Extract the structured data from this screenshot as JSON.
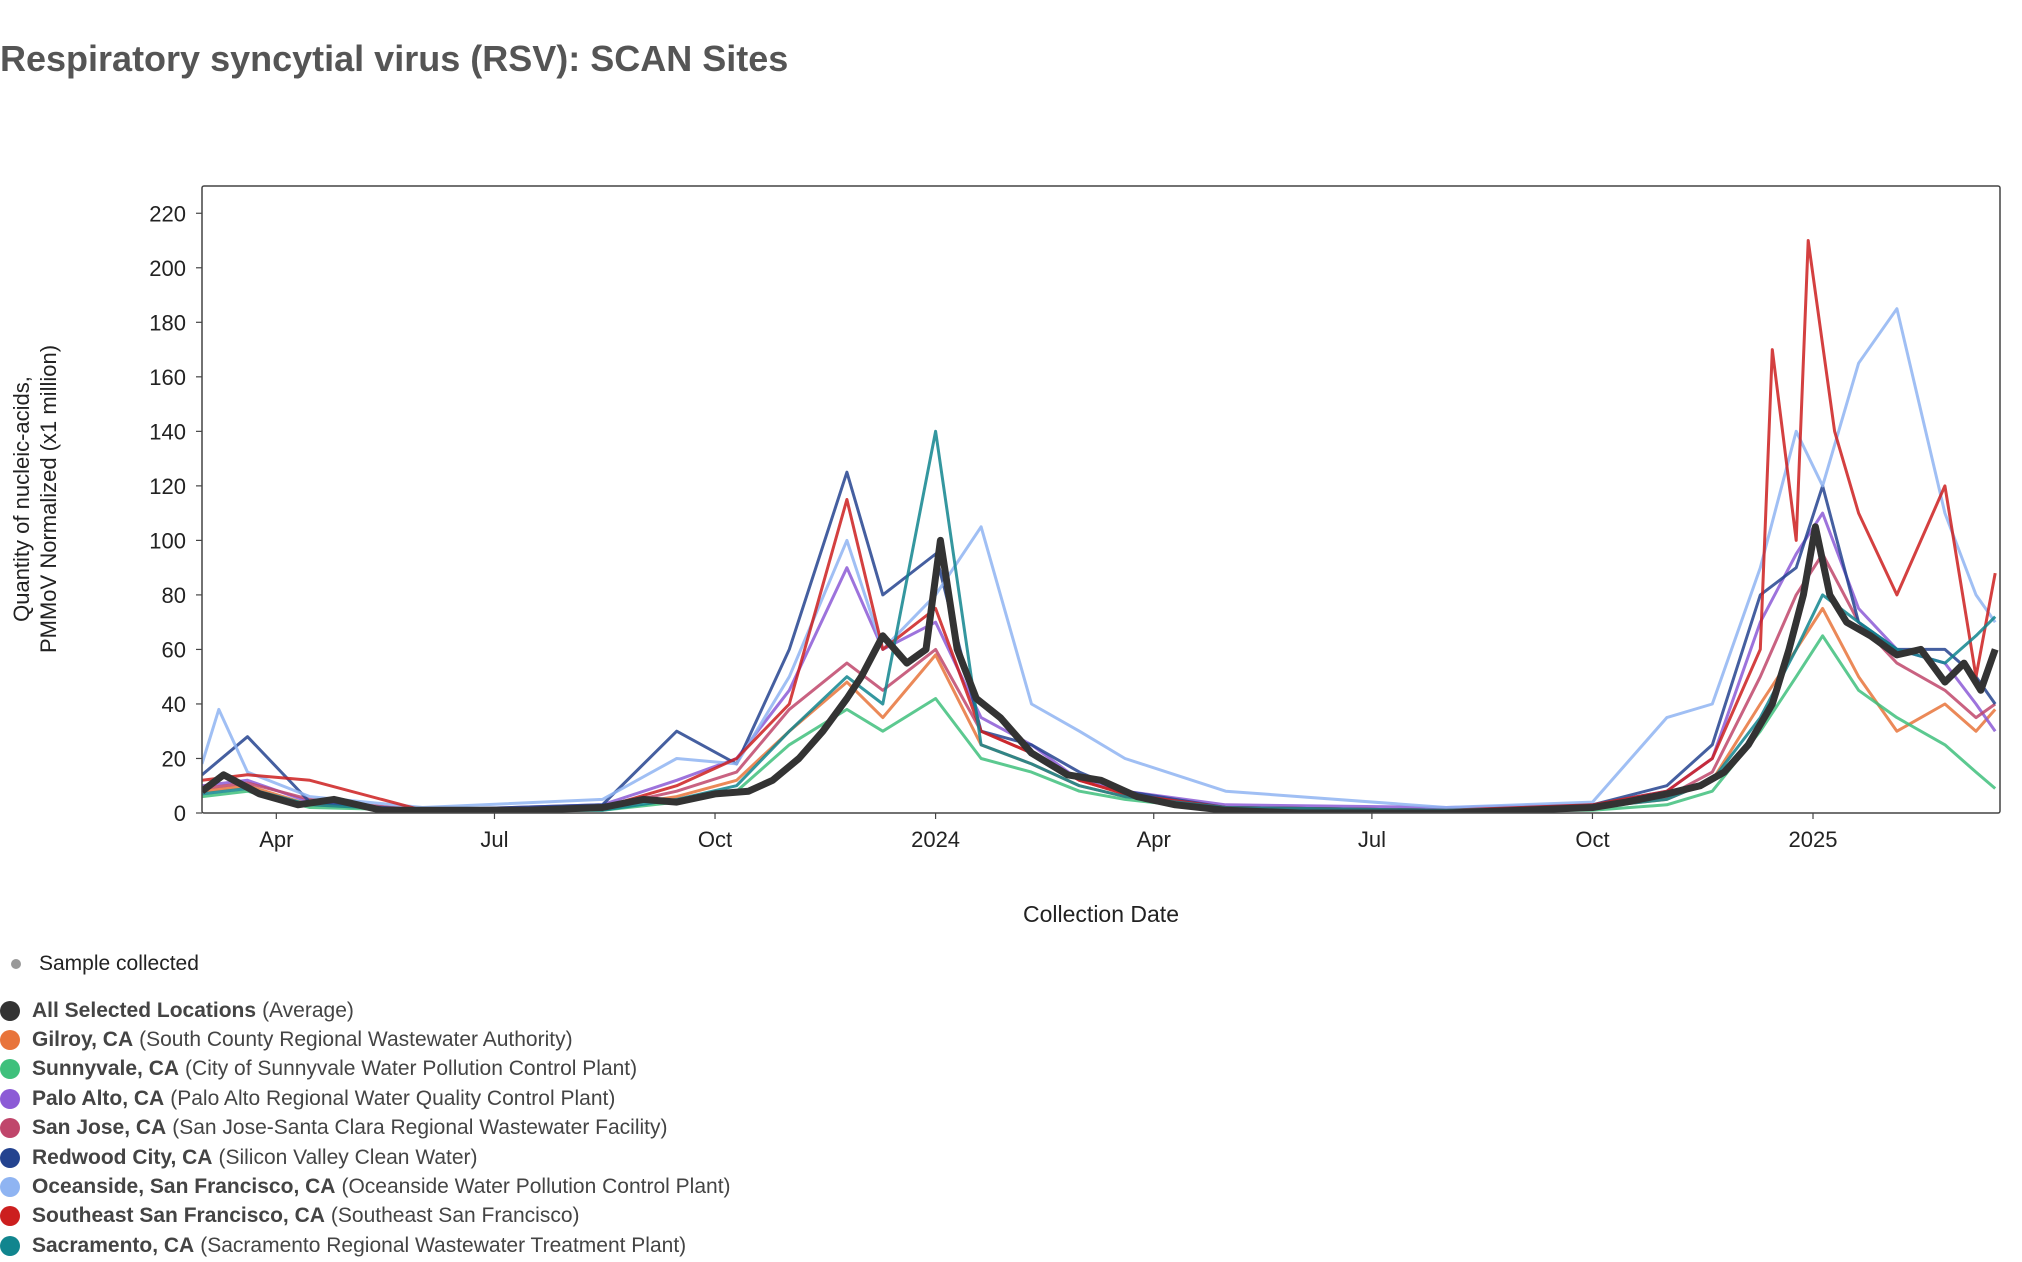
{
  "title": "Respiratory syncytial virus (RSV): SCAN Sites",
  "chart_data": {
    "type": "line",
    "title": "Respiratory syncytial virus (RSV): SCAN Sites",
    "xlabel": "Collection Date",
    "ylabel_lines": [
      "Quantity of nucleic-acids,",
      "PMMoV Normalized (x1 million)"
    ],
    "xlim": [
      "2023-03-01",
      "2025-03-20"
    ],
    "ylim": [
      0,
      230
    ],
    "y_ticks": [
      0,
      20,
      40,
      60,
      80,
      100,
      120,
      140,
      160,
      180,
      200,
      220
    ],
    "x_ticks": [
      {
        "date": "2023-04-01",
        "label": "Apr"
      },
      {
        "date": "2023-07-01",
        "label": "Jul"
      },
      {
        "date": "2023-10-01",
        "label": "Oct"
      },
      {
        "date": "2024-01-01",
        "label": "2024"
      },
      {
        "date": "2024-04-01",
        "label": "Apr"
      },
      {
        "date": "2024-07-01",
        "label": "Jul"
      },
      {
        "date": "2024-10-01",
        "label": "Oct"
      },
      {
        "date": "2025-01-01",
        "label": "2025"
      }
    ],
    "grid": false,
    "legend_position": "bottom-left",
    "sample_legend_label": "Sample collected",
    "series": [
      {
        "name": "Gilroy, CA",
        "facility": "(South County Regional Wastewater Authority)",
        "color": "#e8743b",
        "x": [
          "2023-03-01",
          "2023-03-20",
          "2023-04-15",
          "2023-06-01",
          "2023-08-15",
          "2023-09-15",
          "2023-10-10",
          "2023-11-01",
          "2023-11-25",
          "2023-12-10",
          "2024-01-01",
          "2024-01-20",
          "2024-02-10",
          "2024-03-01",
          "2024-03-20",
          "2024-05-01",
          "2024-08-01",
          "2024-10-01",
          "2024-11-01",
          "2024-11-20",
          "2024-12-10",
          "2024-12-25",
          "2025-01-05",
          "2025-01-20",
          "2025-02-05",
          "2025-02-25",
          "2025-03-10",
          "2025-03-18"
        ],
        "y": [
          8,
          10,
          3,
          1,
          2,
          6,
          12,
          30,
          48,
          35,
          58,
          25,
          18,
          10,
          6,
          2,
          1,
          2,
          5,
          12,
          40,
          60,
          75,
          50,
          30,
          40,
          30,
          38
        ]
      },
      {
        "name": "Sunnyvale, CA",
        "facility": "(City of Sunnyvale Water Pollution Control Plant)",
        "color": "#3fc07c",
        "x": [
          "2023-03-01",
          "2023-03-20",
          "2023-04-15",
          "2023-06-01",
          "2023-08-15",
          "2023-09-15",
          "2023-10-10",
          "2023-11-01",
          "2023-11-25",
          "2023-12-10",
          "2024-01-01",
          "2024-01-20",
          "2024-02-10",
          "2024-03-01",
          "2024-03-20",
          "2024-05-01",
          "2024-08-01",
          "2024-10-01",
          "2024-11-01",
          "2024-11-20",
          "2024-12-10",
          "2024-12-25",
          "2025-01-05",
          "2025-01-20",
          "2025-02-05",
          "2025-02-25",
          "2025-03-10",
          "2025-03-18"
        ],
        "y": [
          6,
          8,
          2,
          1,
          1,
          4,
          8,
          25,
          38,
          30,
          42,
          20,
          15,
          8,
          5,
          1,
          1,
          1,
          3,
          8,
          30,
          50,
          65,
          45,
          35,
          25,
          15,
          9
        ]
      },
      {
        "name": "Palo Alto, CA",
        "facility": "(Palo Alto Regional Water Quality Control Plant)",
        "color": "#8c5bd6",
        "x": [
          "2023-03-01",
          "2023-03-20",
          "2023-04-15",
          "2023-06-01",
          "2023-08-15",
          "2023-09-15",
          "2023-10-10",
          "2023-11-01",
          "2023-11-25",
          "2023-12-10",
          "2024-01-01",
          "2024-01-20",
          "2024-02-10",
          "2024-03-01",
          "2024-03-20",
          "2024-05-01",
          "2024-08-01",
          "2024-10-01",
          "2024-11-01",
          "2024-11-20",
          "2024-12-10",
          "2024-12-25",
          "2025-01-05",
          "2025-01-20",
          "2025-02-05",
          "2025-02-25",
          "2025-03-10",
          "2025-03-18"
        ],
        "y": [
          10,
          12,
          4,
          1,
          3,
          12,
          20,
          45,
          90,
          60,
          70,
          35,
          25,
          12,
          8,
          3,
          2,
          3,
          8,
          20,
          70,
          95,
          110,
          75,
          60,
          55,
          40,
          30
        ]
      },
      {
        "name": "San Jose, CA",
        "facility": "(San Jose-Santa Clara Regional Wastewater Facility)",
        "color": "#c0466b",
        "x": [
          "2023-03-01",
          "2023-03-20",
          "2023-04-15",
          "2023-06-01",
          "2023-08-15",
          "2023-09-15",
          "2023-10-10",
          "2023-11-01",
          "2023-11-25",
          "2023-12-10",
          "2024-01-01",
          "2024-01-20",
          "2024-02-10",
          "2024-03-01",
          "2024-03-20",
          "2024-05-01",
          "2024-08-01",
          "2024-10-01",
          "2024-11-01",
          "2024-11-20",
          "2024-12-10",
          "2024-12-25",
          "2025-01-05",
          "2025-01-20",
          "2025-02-05",
          "2025-02-25",
          "2025-03-10",
          "2025-03-18"
        ],
        "y": [
          9,
          11,
          5,
          1,
          2,
          8,
          15,
          38,
          55,
          45,
          60,
          30,
          22,
          12,
          7,
          2,
          1,
          2,
          6,
          15,
          50,
          80,
          95,
          70,
          55,
          45,
          35,
          40
        ]
      },
      {
        "name": "Redwood City, CA",
        "facility": "(Silicon Valley Clean Water)",
        "color": "#24438f",
        "x": [
          "2023-03-01",
          "2023-03-20",
          "2023-04-15",
          "2023-06-01",
          "2023-08-15",
          "2023-09-15",
          "2023-10-10",
          "2023-11-01",
          "2023-11-25",
          "2023-12-10",
          "2024-01-01",
          "2024-01-20",
          "2024-02-10",
          "2024-03-01",
          "2024-03-20",
          "2024-05-01",
          "2024-08-01",
          "2024-10-01",
          "2024-11-01",
          "2024-11-20",
          "2024-12-10",
          "2024-12-25",
          "2025-01-05",
          "2025-01-20",
          "2025-02-05",
          "2025-02-25",
          "2025-03-10",
          "2025-03-18"
        ],
        "y": [
          14,
          28,
          4,
          1,
          3,
          30,
          18,
          60,
          125,
          80,
          95,
          30,
          25,
          15,
          8,
          2,
          1,
          3,
          10,
          25,
          80,
          90,
          120,
          70,
          60,
          60,
          50,
          40
        ]
      },
      {
        "name": "Oceanside, San Francisco, CA",
        "facility": "(Oceanside Water Pollution Control Plant)",
        "color": "#8fb4f2",
        "x": [
          "2023-03-01",
          "2023-03-08",
          "2023-03-20",
          "2023-04-15",
          "2023-06-01",
          "2023-08-15",
          "2023-09-15",
          "2023-10-10",
          "2023-11-01",
          "2023-11-25",
          "2023-12-10",
          "2024-01-01",
          "2024-01-20",
          "2024-02-10",
          "2024-03-01",
          "2024-03-20",
          "2024-05-01",
          "2024-08-01",
          "2024-10-01",
          "2024-11-01",
          "2024-11-20",
          "2024-12-10",
          "2024-12-25",
          "2025-01-05",
          "2025-01-20",
          "2025-02-05",
          "2025-02-25",
          "2025-03-10",
          "2025-03-18"
        ],
        "y": [
          18,
          38,
          15,
          6,
          2,
          5,
          20,
          18,
          50,
          100,
          60,
          80,
          105,
          40,
          30,
          20,
          8,
          2,
          4,
          35,
          40,
          90,
          140,
          120,
          165,
          185,
          110,
          80,
          70
        ]
      },
      {
        "name": "Southeast San Francisco, CA",
        "facility": "(Southeast San Francisco)",
        "color": "#cc1f1f",
        "x": [
          "2023-03-01",
          "2023-03-20",
          "2023-04-15",
          "2023-06-01",
          "2023-08-15",
          "2023-09-15",
          "2023-10-10",
          "2023-11-01",
          "2023-11-25",
          "2023-12-10",
          "2024-01-01",
          "2024-01-20",
          "2024-02-10",
          "2024-03-01",
          "2024-03-20",
          "2024-05-01",
          "2024-08-01",
          "2024-10-01",
          "2024-11-01",
          "2024-11-20",
          "2024-12-10",
          "2024-12-15",
          "2024-12-25",
          "2024-12-30",
          "2025-01-10",
          "2025-01-20",
          "2025-02-05",
          "2025-02-25",
          "2025-03-10",
          "2025-03-18"
        ],
        "y": [
          12,
          14,
          12,
          1,
          2,
          10,
          20,
          40,
          115,
          60,
          75,
          30,
          22,
          12,
          7,
          2,
          1,
          3,
          8,
          20,
          60,
          170,
          100,
          210,
          140,
          110,
          80,
          120,
          50,
          88
        ]
      },
      {
        "name": "Sacramento, CA",
        "facility": "(Sacramento Regional Wastewater Treatment Plant)",
        "color": "#11858e",
        "x": [
          "2023-03-01",
          "2023-03-20",
          "2023-04-15",
          "2023-06-01",
          "2023-08-15",
          "2023-09-15",
          "2023-10-10",
          "2023-11-01",
          "2023-11-25",
          "2023-12-10",
          "2024-01-01",
          "2024-01-20",
          "2024-02-10",
          "2024-03-01",
          "2024-03-20",
          "2024-05-01",
          "2024-08-01",
          "2024-10-01",
          "2024-11-01",
          "2024-11-20",
          "2024-12-10",
          "2024-12-25",
          "2025-01-05",
          "2025-01-20",
          "2025-02-05",
          "2025-02-25",
          "2025-03-10",
          "2025-03-18"
        ],
        "y": [
          7,
          9,
          3,
          1,
          1,
          5,
          10,
          30,
          50,
          40,
          140,
          25,
          18,
          10,
          6,
          2,
          1,
          2,
          5,
          12,
          35,
          60,
          80,
          70,
          60,
          55,
          65,
          72
        ]
      },
      {
        "name": "All Selected Locations",
        "facility": "(Average)",
        "color": "#333333",
        "width": 7,
        "x": [
          "2023-03-01",
          "2023-03-10",
          "2023-03-25",
          "2023-04-10",
          "2023-04-25",
          "2023-05-15",
          "2023-06-15",
          "2023-07-15",
          "2023-08-15",
          "2023-09-01",
          "2023-09-15",
          "2023-10-01",
          "2023-10-15",
          "2023-10-25",
          "2023-11-05",
          "2023-11-15",
          "2023-11-25",
          "2023-12-01",
          "2023-12-10",
          "2023-12-20",
          "2023-12-28",
          "2024-01-03",
          "2024-01-10",
          "2024-01-18",
          "2024-01-28",
          "2024-02-10",
          "2024-02-25",
          "2024-03-10",
          "2024-03-25",
          "2024-04-10",
          "2024-05-01",
          "2024-06-01",
          "2024-07-01",
          "2024-08-01",
          "2024-09-01",
          "2024-10-01",
          "2024-10-15",
          "2024-11-01",
          "2024-11-15",
          "2024-11-25",
          "2024-12-05",
          "2024-12-15",
          "2024-12-22",
          "2024-12-28",
          "2025-01-02",
          "2025-01-08",
          "2025-01-15",
          "2025-01-25",
          "2025-02-05",
          "2025-02-15",
          "2025-02-25",
          "2025-03-05",
          "2025-03-12",
          "2025-03-18"
        ],
        "y": [
          8,
          14,
          7,
          3,
          5,
          1,
          1,
          1,
          2,
          5,
          4,
          7,
          8,
          12,
          20,
          30,
          42,
          50,
          65,
          55,
          60,
          100,
          60,
          42,
          35,
          22,
          14,
          12,
          6,
          3,
          1,
          0,
          0,
          0,
          1,
          2,
          4,
          7,
          10,
          15,
          25,
          40,
          60,
          80,
          105,
          80,
          70,
          65,
          58,
          60,
          48,
          55,
          45,
          60
        ]
      }
    ]
  }
}
